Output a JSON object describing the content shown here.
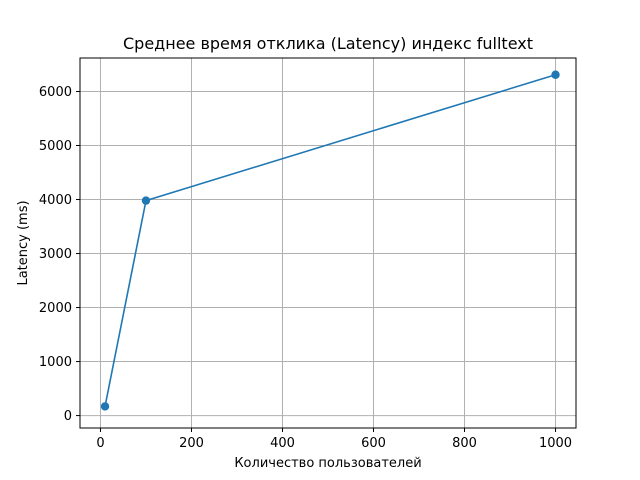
{
  "chart_data": {
    "type": "line",
    "title": "Среднее время отклика (Latency) индекс fulltext",
    "xlabel": "Количество пользователей",
    "ylabel": "Latency (ms)",
    "xlim": [
      -45,
      1045
    ],
    "ylim": [
      -230,
      6620
    ],
    "xticks": [
      0,
      200,
      400,
      600,
      800,
      1000
    ],
    "yticks": [
      0,
      1000,
      2000,
      3000,
      4000,
      5000,
      6000
    ],
    "grid": true,
    "color": "#1f77b4",
    "series": [
      {
        "x": [
          10,
          100,
          1000
        ],
        "y": [
          170,
          3980,
          6310
        ]
      }
    ]
  }
}
